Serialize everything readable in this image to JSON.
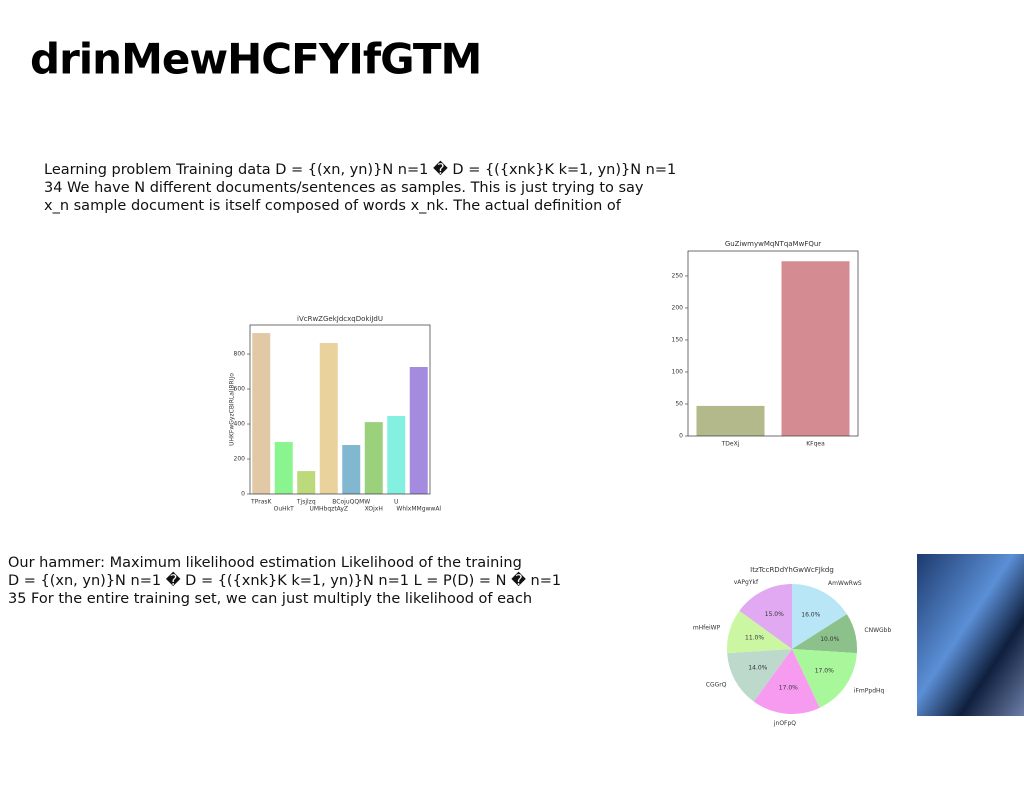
{
  "title": "drinMewHCFYIfGTM",
  "paragraphs": [
    [
      "Learning problem Training data D = {(xn, yn)}N n=1 � D = {({xnk}K k=1, yn)}N n=1",
      "34 We have N different documents/sentences as samples. This is just trying to say",
      "x_n sample document is itself composed of words x_nk. The actual definition of"
    ],
    [
      "Our hammer: Maximum likelihood estimation Likelihood of the training",
      "D = {(xn, yn)}N n=1 � D = {({xnk}K k=1, yn)}N n=1 L = P(D) = N � n=1",
      "35 For the entire training set, we can just multiply the likelihood of each"
    ]
  ],
  "chart_data": [
    {
      "type": "bar",
      "title": "iVcRwZGekJdcxqDokiJdU",
      "ylabel": "UHKFwGyzCBIRLaIJBRIJo",
      "categories": [
        "TPrasK",
        "OuHkT",
        "Tjsjlzq",
        "UMHbqztAyZ",
        "BCojuQQMW",
        "XOjxH",
        "U",
        "WhlxMMgwwAl"
      ],
      "values": [
        920,
        297,
        131,
        863,
        280,
        411,
        446,
        726
      ],
      "colors": [
        "#e2c9a6",
        "#8af58f",
        "#bcd97c",
        "#e9d29b",
        "#82b8cf",
        "#9bd07c",
        "#84f0df",
        "#a58be0"
      ],
      "ylim": [
        0,
        966
      ],
      "yticks": [
        0,
        200,
        400,
        600,
        800
      ]
    },
    {
      "type": "bar",
      "title": "GuZiwmywMqNTqaMwFQur",
      "categories": [
        "TDeXj",
        "KFqea"
      ],
      "values": [
        47,
        273
      ],
      "colors": [
        "#b3b98a",
        "#d58b92"
      ],
      "ylim": [
        0,
        289
      ],
      "yticks": [
        0,
        50,
        100,
        150,
        200,
        250
      ]
    },
    {
      "type": "pie",
      "title": "ItzTccRDdYhGwWcFJkdg",
      "categories": [
        "AmWwRwS",
        "CNWGbb",
        "iFmPpdHq",
        "jnOFpQ",
        "CGGrQ",
        "mHfeiWP",
        "vAPgYkf"
      ],
      "values": [
        16,
        10,
        17,
        17,
        14,
        11,
        15
      ],
      "value_labels": [
        "16.0%",
        "10.0%",
        "17.0%",
        "17.0%",
        "14.0%",
        "11.0%",
        "15.0%"
      ],
      "colors": [
        "#b9e6f7",
        "#8cc18c",
        "#a9f79b",
        "#f79bf1",
        "#bcd9cb",
        "#cbf7a3",
        "#e0a9f1"
      ]
    }
  ]
}
